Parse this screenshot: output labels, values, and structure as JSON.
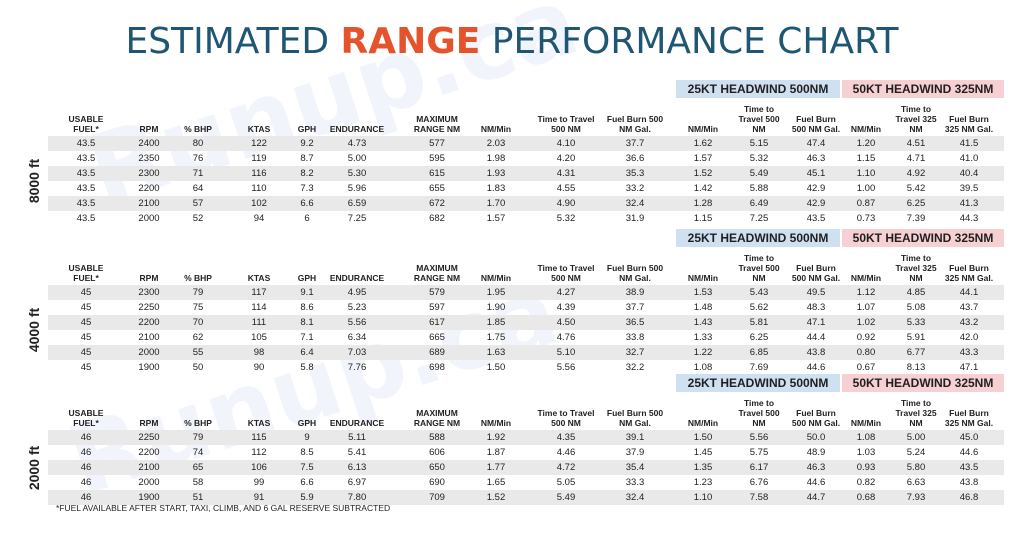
{
  "title": {
    "part1": "ESTIMATED ",
    "accent": "RANGE",
    "part2": " PERFORMANCE CHART"
  },
  "watermark": "Runup.ca",
  "colors": {
    "title": "#1f5673",
    "accent": "#e5532c",
    "headwind25": "#cfe0f1",
    "headwind50": "#f6d0d3",
    "row_shade": "#e9e9e9"
  },
  "headwind_labels": {
    "hw25": "25KT HEADWIND 500NM",
    "hw50": "50KT HEADWIND 325NM"
  },
  "columns": [
    "USABLE FUEL*",
    "RPM",
    "% BHP",
    "KTAS",
    "GPH",
    "ENDURANCE",
    "MAXIMUM RANGE NM",
    "NM/Min",
    "Time to Travel 500 NM",
    "Fuel Burn 500 NM Gal.",
    "NM/Min",
    "Time to Travel 500 NM",
    "Fuel Burn 500 NM Gal.",
    "NM/Min",
    "Time to Travel 325 NM",
    "Fuel Burn 325 NM Gal."
  ],
  "sections": [
    {
      "altitude": "8000 ft",
      "rows": [
        [
          "43.5",
          "2400",
          "80",
          "122",
          "9.2",
          "4.73",
          "577",
          "2.03",
          "4.10",
          "37.7",
          "1.62",
          "5.15",
          "47.4",
          "1.20",
          "4.51",
          "41.5"
        ],
        [
          "43.5",
          "2350",
          "76",
          "119",
          "8.7",
          "5.00",
          "595",
          "1.98",
          "4.20",
          "36.6",
          "1.57",
          "5.32",
          "46.3",
          "1.15",
          "4.71",
          "41.0"
        ],
        [
          "43.5",
          "2300",
          "71",
          "116",
          "8.2",
          "5.30",
          "615",
          "1.93",
          "4.31",
          "35.3",
          "1.52",
          "5.49",
          "45.1",
          "1.10",
          "4.92",
          "40.4"
        ],
        [
          "43.5",
          "2200",
          "64",
          "110",
          "7.3",
          "5.96",
          "655",
          "1.83",
          "4.55",
          "33.2",
          "1.42",
          "5.88",
          "42.9",
          "1.00",
          "5.42",
          "39.5"
        ],
        [
          "43.5",
          "2100",
          "57",
          "102",
          "6.6",
          "6.59",
          "672",
          "1.70",
          "4.90",
          "32.4",
          "1.28",
          "6.49",
          "42.9",
          "0.87",
          "6.25",
          "41.3"
        ],
        [
          "43.5",
          "2000",
          "52",
          "94",
          "6",
          "7.25",
          "682",
          "1.57",
          "5.32",
          "31.9",
          "1.15",
          "7.25",
          "43.5",
          "0.73",
          "7.39",
          "44.3"
        ]
      ]
    },
    {
      "altitude": "4000 ft",
      "rows": [
        [
          "45",
          "2300",
          "79",
          "117",
          "9.1",
          "4.95",
          "579",
          "1.95",
          "4.27",
          "38.9",
          "1.53",
          "5.43",
          "49.5",
          "1.12",
          "4.85",
          "44.1"
        ],
        [
          "45",
          "2250",
          "75",
          "114",
          "8.6",
          "5.23",
          "597",
          "1.90",
          "4.39",
          "37.7",
          "1.48",
          "5.62",
          "48.3",
          "1.07",
          "5.08",
          "43.7"
        ],
        [
          "45",
          "2200",
          "70",
          "111",
          "8.1",
          "5.56",
          "617",
          "1.85",
          "4.50",
          "36.5",
          "1.43",
          "5.81",
          "47.1",
          "1.02",
          "5.33",
          "43.2"
        ],
        [
          "45",
          "2100",
          "62",
          "105",
          "7.1",
          "6.34",
          "665",
          "1.75",
          "4.76",
          "33.8",
          "1.33",
          "6.25",
          "44.4",
          "0.92",
          "5.91",
          "42.0"
        ],
        [
          "45",
          "2000",
          "55",
          "98",
          "6.4",
          "7.03",
          "689",
          "1.63",
          "5.10",
          "32.7",
          "1.22",
          "6.85",
          "43.8",
          "0.80",
          "6.77",
          "43.3"
        ],
        [
          "45",
          "1900",
          "50",
          "90",
          "5.8",
          "7.76",
          "698",
          "1.50",
          "5.56",
          "32.2",
          "1.08",
          "7.69",
          "44.6",
          "0.67",
          "8.13",
          "47.1"
        ]
      ]
    },
    {
      "altitude": "2000 ft",
      "rows": [
        [
          "46",
          "2250",
          "79",
          "115",
          "9",
          "5.11",
          "588",
          "1.92",
          "4.35",
          "39.1",
          "1.50",
          "5.56",
          "50.0",
          "1.08",
          "5.00",
          "45.0"
        ],
        [
          "46",
          "2200",
          "74",
          "112",
          "8.5",
          "5.41",
          "606",
          "1.87",
          "4.46",
          "37.9",
          "1.45",
          "5.75",
          "48.9",
          "1.03",
          "5.24",
          "44.6"
        ],
        [
          "46",
          "2100",
          "65",
          "106",
          "7.5",
          "6.13",
          "650",
          "1.77",
          "4.72",
          "35.4",
          "1.35",
          "6.17",
          "46.3",
          "0.93",
          "5.80",
          "43.5"
        ],
        [
          "46",
          "2000",
          "58",
          "99",
          "6.6",
          "6.97",
          "690",
          "1.65",
          "5.05",
          "33.3",
          "1.23",
          "6.76",
          "44.6",
          "0.82",
          "6.63",
          "43.8"
        ],
        [
          "46",
          "1900",
          "51",
          "91",
          "5.9",
          "7.80",
          "709",
          "1.52",
          "5.49",
          "32.4",
          "1.10",
          "7.58",
          "44.7",
          "0.68",
          "7.93",
          "46.8"
        ]
      ]
    }
  ],
  "footnote": "*FUEL AVAILABLE AFTER  START, TAXI, CLIMB, AND 6 GAL RESERVE SUBTRACTED"
}
